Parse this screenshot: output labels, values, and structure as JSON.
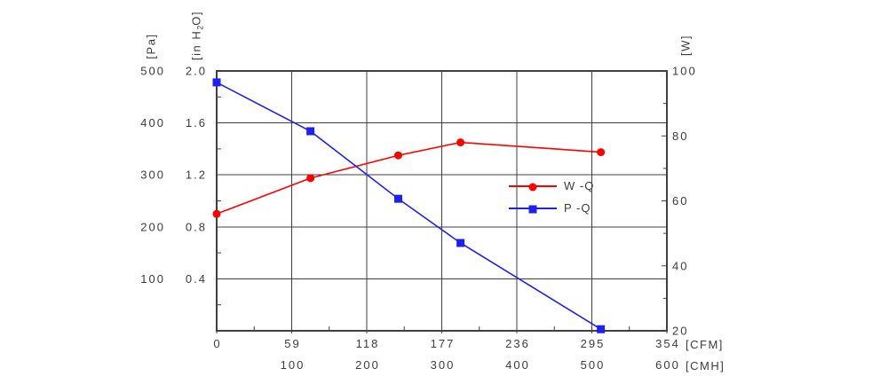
{
  "chart_data": {
    "type": "line",
    "title": "",
    "grid": true,
    "legend_position": "inside-right",
    "axes": {
      "x_cfm": {
        "unit": "[CFM]",
        "min": 0,
        "max": 354,
        "tick_values": [
          0,
          59,
          118,
          177,
          236,
          295,
          354
        ],
        "tick_labels": [
          "0",
          "59",
          "118",
          "177",
          "236",
          "295",
          "354"
        ]
      },
      "x_cmh": {
        "unit": "[CMH]",
        "min": 0,
        "max": 600,
        "tick_values": [
          100,
          200,
          300,
          400,
          500,
          600
        ],
        "tick_labels": [
          "100",
          "200",
          "300",
          "400",
          "500",
          "600"
        ]
      },
      "left_pa": {
        "unit": "[Pa]",
        "min": 0,
        "max": 500,
        "tick_values": [
          100,
          200,
          300,
          400,
          500
        ],
        "tick_labels": [
          "100",
          "200",
          "300",
          "400",
          "500"
        ]
      },
      "left_inh2o": {
        "unit_parts": [
          "[in H",
          "2",
          "O]"
        ],
        "min": 0,
        "max": 2.0,
        "tick_values": [
          0.4,
          0.8,
          1.2,
          1.6,
          2.0
        ],
        "tick_labels": [
          "0.4",
          "0.8",
          "1.2",
          "1.6",
          "2.0"
        ]
      },
      "right_w": {
        "unit": "[W]",
        "min": 20,
        "max": 100,
        "tick_values": [
          20,
          40,
          60,
          80,
          100
        ],
        "tick_labels": [
          "20",
          "40",
          "60",
          "80",
          "100"
        ]
      }
    },
    "series": [
      {
        "name": "W -Q",
        "axis": "right_w",
        "color": "#ff0000",
        "marker": "circle",
        "x_cmh": [
          0,
          125,
          242,
          325,
          512
        ],
        "values": [
          56,
          67,
          74,
          78,
          75
        ]
      },
      {
        "name": "P -Q",
        "axis": "left_pa",
        "color": "#2020ee",
        "marker": "square",
        "x_cmh": [
          0,
          125,
          242,
          325,
          512
        ],
        "values": [
          478,
          384,
          254,
          169,
          3
        ]
      }
    ],
    "style": {
      "grid_color": "#404040",
      "text_color": "#3c3c3c"
    }
  }
}
